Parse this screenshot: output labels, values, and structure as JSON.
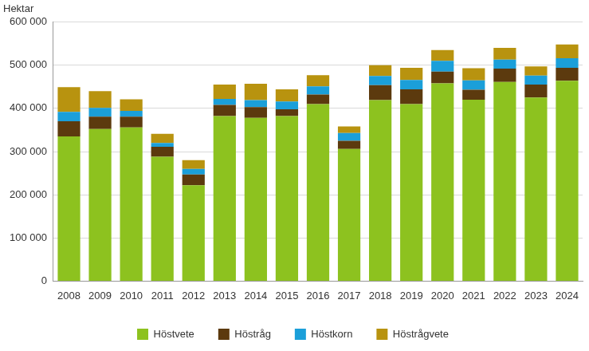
{
  "chart_data": {
    "type": "bar",
    "stacked": true,
    "y_label": "Hektar",
    "categories": [
      "2008",
      "2009",
      "2010",
      "2011",
      "2012",
      "2013",
      "2014",
      "2015",
      "2016",
      "2017",
      "2018",
      "2019",
      "2020",
      "2021",
      "2022",
      "2023",
      "2024"
    ],
    "series": [
      {
        "name": "Höstvete",
        "color": "#8dc21f",
        "values": [
          335000,
          352000,
          356000,
          288000,
          222000,
          382000,
          378000,
          382000,
          410000,
          306000,
          419000,
          410000,
          458000,
          420000,
          461000,
          425000,
          464000
        ]
      },
      {
        "name": "Höstråg",
        "color": "#5c3a0e",
        "values": [
          35000,
          29000,
          25000,
          23000,
          25000,
          26000,
          25000,
          16000,
          22000,
          19000,
          35000,
          34000,
          27000,
          23000,
          31000,
          30000,
          30000
        ]
      },
      {
        "name": "Höstkorn",
        "color": "#1b9fd9",
        "values": [
          22000,
          20000,
          13000,
          9000,
          13000,
          14000,
          16000,
          18000,
          19000,
          18000,
          21000,
          22000,
          25000,
          22000,
          21000,
          21000,
          22000
        ]
      },
      {
        "name": "Höstrågvete",
        "color": "#b8930f",
        "values": [
          57000,
          39000,
          27000,
          21000,
          20000,
          33000,
          38000,
          28000,
          26000,
          15000,
          25000,
          28000,
          25000,
          28000,
          27000,
          21000,
          32000
        ]
      }
    ],
    "ylim": [
      0,
      600000
    ],
    "yticks": [
      0,
      {
        "value": 100000,
        "label": "100 000"
      },
      {
        "value": 200000,
        "label": "200 000"
      },
      {
        "value": 300000,
        "label": "300 000"
      },
      {
        "value": 400000,
        "label": "400 000"
      },
      {
        "value": 500000,
        "label": "500 000"
      },
      {
        "value": 600000,
        "label": "600 000"
      }
    ],
    "grid": true,
    "legend": "bottom"
  }
}
